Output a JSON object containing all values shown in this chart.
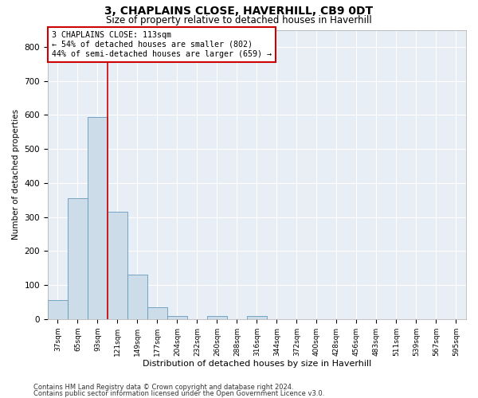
{
  "title": "3, CHAPLAINS CLOSE, HAVERHILL, CB9 0DT",
  "subtitle": "Size of property relative to detached houses in Haverhill",
  "xlabel": "Distribution of detached houses by size in Haverhill",
  "ylabel": "Number of detached properties",
  "bar_color": "#ccdce8",
  "bar_edge_color": "#6699bb",
  "background_color": "#e8eef5",
  "grid_color": "#ffffff",
  "annotation_box_color": "#cc0000",
  "vline_color": "#cc0000",
  "annotation_line1": "3 CHAPLAINS CLOSE: 113sqm",
  "annotation_line2": "← 54% of detached houses are smaller (802)",
  "annotation_line3": "44% of semi-detached houses are larger (659) →",
  "footnote1": "Contains HM Land Registry data © Crown copyright and database right 2024.",
  "footnote2": "Contains public sector information licensed under the Open Government Licence v3.0.",
  "bin_labels": [
    "37sqm",
    "65sqm",
    "93sqm",
    "121sqm",
    "149sqm",
    "177sqm",
    "204sqm",
    "232sqm",
    "260sqm",
    "288sqm",
    "316sqm",
    "344sqm",
    "372sqm",
    "400sqm",
    "428sqm",
    "456sqm",
    "483sqm",
    "511sqm",
    "539sqm",
    "567sqm",
    "595sqm"
  ],
  "bin_values": [
    55,
    355,
    595,
    315,
    130,
    35,
    10,
    0,
    10,
    0,
    10,
    0,
    0,
    0,
    0,
    0,
    0,
    0,
    0,
    0,
    0
  ],
  "ylim": [
    0,
    850
  ],
  "yticks": [
    0,
    100,
    200,
    300,
    400,
    500,
    600,
    700,
    800
  ],
  "vline_bin_index": 2.5
}
